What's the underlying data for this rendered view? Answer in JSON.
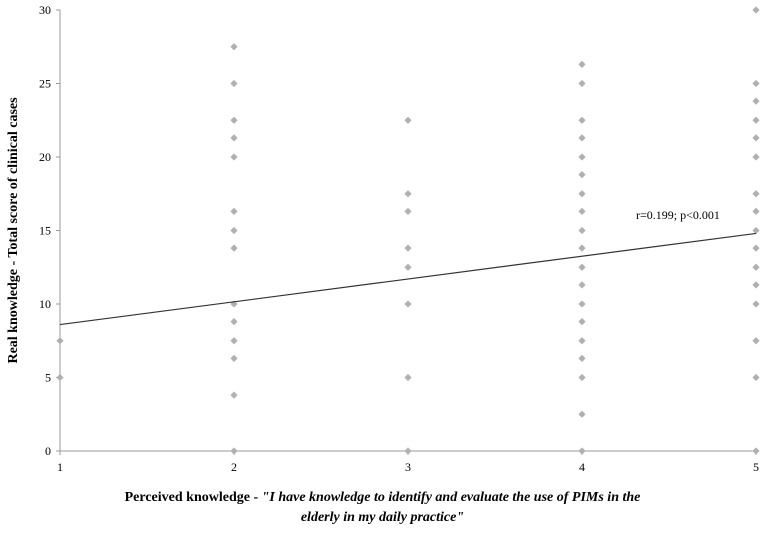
{
  "chart_data": {
    "type": "scatter",
    "title": "",
    "ylabel": "Real knowledge - Total score of clinical cases",
    "xlabel_prefix": "Perceived knowledge - ",
    "xlabel_quote_line1": "\"I have knowledge to identify and evaluate the use of PIMs in the",
    "xlabel_quote_line2": "elderly in my daily practice\"",
    "xlim": [
      1,
      5
    ],
    "ylim": [
      0,
      30
    ],
    "xticks": [
      1,
      2,
      3,
      4,
      5
    ],
    "yticks": [
      0,
      5,
      10,
      15,
      20,
      25,
      30
    ],
    "grid": false,
    "point_color": "#b0b0b0",
    "line_color": "#333333",
    "trendline": {
      "x": [
        1,
        5
      ],
      "y": [
        8.6,
        14.8
      ]
    },
    "annotation": "r=0.199; p<0.001",
    "points": [
      {
        "x": 1,
        "y": 7.5
      },
      {
        "x": 1,
        "y": 5
      },
      {
        "x": 2,
        "y": 27.5
      },
      {
        "x": 2,
        "y": 25
      },
      {
        "x": 2,
        "y": 22.5
      },
      {
        "x": 2,
        "y": 21.3
      },
      {
        "x": 2,
        "y": 20
      },
      {
        "x": 2,
        "y": 16.3
      },
      {
        "x": 2,
        "y": 15
      },
      {
        "x": 2,
        "y": 13.8
      },
      {
        "x": 2,
        "y": 10
      },
      {
        "x": 2,
        "y": 8.8
      },
      {
        "x": 2,
        "y": 7.5
      },
      {
        "x": 2,
        "y": 6.3
      },
      {
        "x": 2,
        "y": 3.8
      },
      {
        "x": 2,
        "y": 0
      },
      {
        "x": 3,
        "y": 22.5
      },
      {
        "x": 3,
        "y": 17.5
      },
      {
        "x": 3,
        "y": 16.3
      },
      {
        "x": 3,
        "y": 13.8
      },
      {
        "x": 3,
        "y": 12.5
      },
      {
        "x": 3,
        "y": 10
      },
      {
        "x": 3,
        "y": 5
      },
      {
        "x": 3,
        "y": 0
      },
      {
        "x": 4,
        "y": 26.3
      },
      {
        "x": 4,
        "y": 25
      },
      {
        "x": 4,
        "y": 22.5
      },
      {
        "x": 4,
        "y": 21.3
      },
      {
        "x": 4,
        "y": 20
      },
      {
        "x": 4,
        "y": 18.8
      },
      {
        "x": 4,
        "y": 17.5
      },
      {
        "x": 4,
        "y": 16.3
      },
      {
        "x": 4,
        "y": 15
      },
      {
        "x": 4,
        "y": 13.8
      },
      {
        "x": 4,
        "y": 12.5
      },
      {
        "x": 4,
        "y": 11.3
      },
      {
        "x": 4,
        "y": 10
      },
      {
        "x": 4,
        "y": 8.8
      },
      {
        "x": 4,
        "y": 7.5
      },
      {
        "x": 4,
        "y": 6.3
      },
      {
        "x": 4,
        "y": 5
      },
      {
        "x": 4,
        "y": 2.5
      },
      {
        "x": 4,
        "y": 0
      },
      {
        "x": 5,
        "y": 30
      },
      {
        "x": 5,
        "y": 25
      },
      {
        "x": 5,
        "y": 23.8
      },
      {
        "x": 5,
        "y": 22.5
      },
      {
        "x": 5,
        "y": 21.3
      },
      {
        "x": 5,
        "y": 20
      },
      {
        "x": 5,
        "y": 17.5
      },
      {
        "x": 5,
        "y": 16.3
      },
      {
        "x": 5,
        "y": 15
      },
      {
        "x": 5,
        "y": 13.8
      },
      {
        "x": 5,
        "y": 12.5
      },
      {
        "x": 5,
        "y": 11.3
      },
      {
        "x": 5,
        "y": 10
      },
      {
        "x": 5,
        "y": 7.5
      },
      {
        "x": 5,
        "y": 5
      },
      {
        "x": 5,
        "y": 0
      }
    ]
  }
}
